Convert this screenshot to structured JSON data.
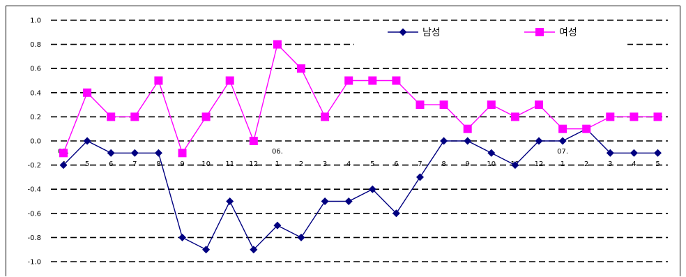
{
  "chart_data": {
    "type": "line",
    "categories": [
      "4",
      "5",
      "6",
      "7",
      "8",
      "9",
      "10",
      "11",
      "12",
      "1",
      "2",
      "3",
      "4",
      "5",
      "6",
      "7",
      "8",
      "9",
      "10",
      "11",
      "12",
      "1",
      "2",
      "3",
      "4",
      "5"
    ],
    "year_markers": [
      {
        "index": 0,
        "label": "05."
      },
      {
        "index": 9,
        "label": "06."
      },
      {
        "index": 21,
        "label": "07."
      }
    ],
    "series": [
      {
        "name": "남성",
        "color": "#000080",
        "marker": "diamond",
        "values": [
          -0.2,
          0.0,
          -0.1,
          -0.1,
          -0.1,
          -0.8,
          -0.9,
          -0.5,
          -0.9,
          -0.7,
          -0.8,
          -0.5,
          -0.5,
          -0.4,
          -0.6,
          -0.3,
          0.0,
          0.0,
          -0.1,
          -0.2,
          0.0,
          0.0,
          0.1,
          -0.1,
          -0.1,
          -0.1
        ]
      },
      {
        "name": "여성",
        "color": "#ff00ff",
        "marker": "square",
        "values": [
          -0.1,
          0.4,
          0.2,
          0.2,
          0.5,
          -0.1,
          0.2,
          0.5,
          0.0,
          0.8,
          0.6,
          0.2,
          0.5,
          0.5,
          0.5,
          0.3,
          0.3,
          0.1,
          0.3,
          0.2,
          0.3,
          0.1,
          0.1,
          0.2,
          0.2,
          0.2
        ]
      }
    ],
    "y_ticks": [
      "1.0",
      "0.8",
      "0.6",
      "0.4",
      "0.2",
      "0.0",
      "-0.2",
      "-0.4",
      "-0.6",
      "-0.8",
      "-1.0"
    ],
    "ylim": [
      -1.0,
      1.0
    ],
    "grid": true,
    "legend": "top-right"
  }
}
